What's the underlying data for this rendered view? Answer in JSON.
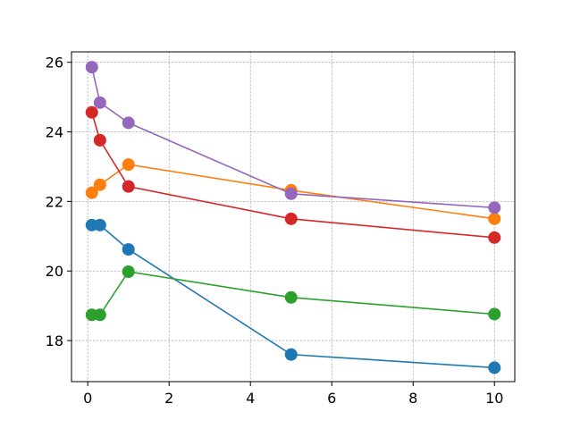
{
  "chart_data": {
    "type": "line",
    "title": "",
    "xlabel": "",
    "ylabel": "",
    "xlim": [
      -0.4,
      10.5
    ],
    "ylim": [
      16.82,
      26.3
    ],
    "xticks": [
      0,
      2,
      4,
      6,
      8,
      10
    ],
    "yticks": [
      18,
      20,
      22,
      24,
      26
    ],
    "grid": true,
    "legend": "none",
    "x": [
      0.1,
      0.3,
      1,
      5,
      10
    ],
    "series": [
      {
        "color": "#1f77b4",
        "values": [
          21.32,
          21.32,
          20.62,
          17.6,
          17.22
        ]
      },
      {
        "color": "#ff7f0e",
        "values": [
          22.25,
          22.48,
          23.06,
          22.32,
          21.5
        ]
      },
      {
        "color": "#2ca02c",
        "values": [
          18.74,
          18.74,
          19.98,
          19.24,
          18.76
        ]
      },
      {
        "color": "#d62728",
        "values": [
          24.56,
          23.76,
          22.43,
          21.5,
          20.96
        ]
      },
      {
        "color": "#9467bd",
        "values": [
          25.86,
          24.84,
          24.26,
          22.22,
          21.82
        ]
      }
    ]
  }
}
